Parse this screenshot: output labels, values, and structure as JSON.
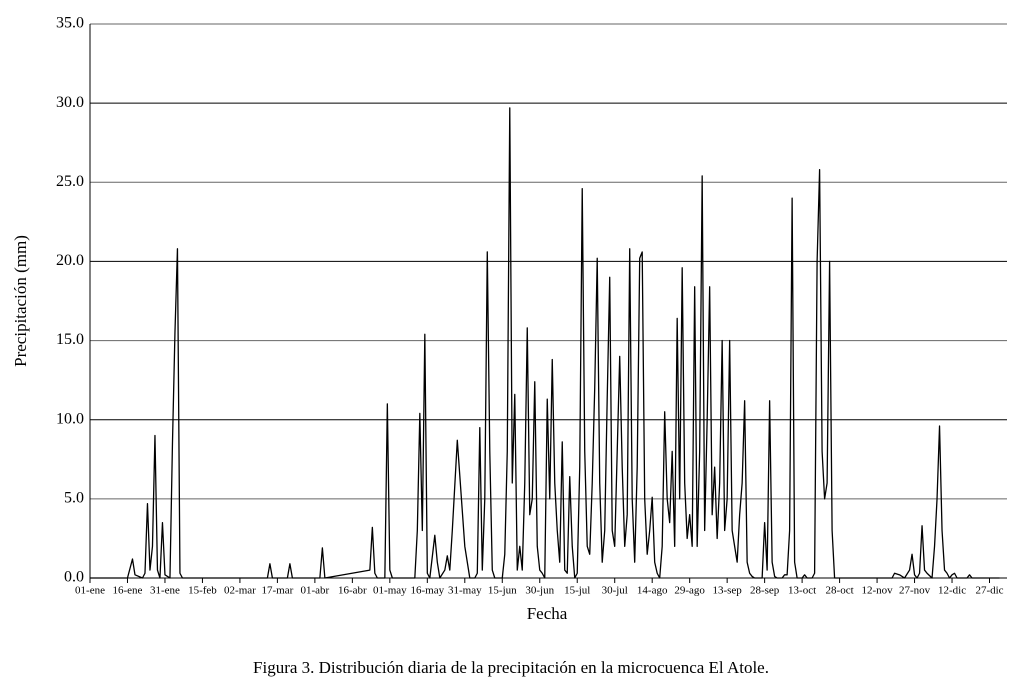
{
  "chart_data": {
    "type": "line",
    "ylabel": "Precipitación (mm)",
    "xlabel": "Fecha",
    "caption": "Figura 3. Distribución diaria de la precipitación en la microcuenca El Atole.",
    "xlim": [
      1,
      368
    ],
    "ylim": [
      0,
      35
    ],
    "yticks": [
      {
        "value": 0,
        "label": "0.0"
      },
      {
        "value": 5,
        "label": "5.0"
      },
      {
        "value": 10,
        "label": "10.0"
      },
      {
        "value": 15,
        "label": "15.0"
      },
      {
        "value": 20,
        "label": "20.0"
      },
      {
        "value": 25,
        "label": "25.0"
      },
      {
        "value": 30,
        "label": "30.0"
      },
      {
        "value": 35,
        "label": "35.0"
      }
    ],
    "xticks": [
      {
        "value": 1,
        "label": "01-ene"
      },
      {
        "value": 16,
        "label": "16-ene"
      },
      {
        "value": 31,
        "label": "31-ene"
      },
      {
        "value": 46,
        "label": "15-feb"
      },
      {
        "value": 61,
        "label": "02-mar"
      },
      {
        "value": 76,
        "label": "17-mar"
      },
      {
        "value": 91,
        "label": "01-abr"
      },
      {
        "value": 106,
        "label": "16-abr"
      },
      {
        "value": 121,
        "label": "01-may"
      },
      {
        "value": 136,
        "label": "16-may"
      },
      {
        "value": 151,
        "label": "31-may"
      },
      {
        "value": 166,
        "label": "15-jun"
      },
      {
        "value": 181,
        "label": "30-jun"
      },
      {
        "value": 196,
        "label": "15-jul"
      },
      {
        "value": 211,
        "label": "30-jul"
      },
      {
        "value": 226,
        "label": "14-ago"
      },
      {
        "value": 241,
        "label": "29-ago"
      },
      {
        "value": 256,
        "label": "13-sep"
      },
      {
        "value": 271,
        "label": "28-sep"
      },
      {
        "value": 286,
        "label": "13-oct"
      },
      {
        "value": 301,
        "label": "28-oct"
      },
      {
        "value": 316,
        "label": "12-nov"
      },
      {
        "value": 331,
        "label": "27-nov"
      },
      {
        "value": 346,
        "label": "12-dic"
      },
      {
        "value": 361,
        "label": "27-dic"
      }
    ],
    "grid": true,
    "color": "#000000",
    "x": [
      1,
      16,
      18,
      19,
      22,
      23,
      24,
      25,
      26,
      27,
      28,
      29,
      30,
      31,
      33,
      34,
      35,
      36,
      37,
      38,
      72,
      73,
      74,
      80,
      81,
      82,
      93,
      94,
      95,
      113,
      114,
      115,
      116,
      119,
      120,
      121,
      122,
      131,
      132,
      133,
      134,
      135,
      136,
      137,
      139,
      140,
      141,
      143,
      144,
      145,
      146,
      148,
      151,
      153,
      155,
      156,
      157,
      158,
      159,
      160,
      161,
      162,
      163,
      166,
      167,
      168,
      169,
      170,
      171,
      172,
      173,
      174,
      175,
      176,
      177,
      178,
      179,
      180,
      181,
      182,
      183,
      184,
      185,
      186,
      187,
      188,
      189,
      190,
      191,
      192,
      193,
      194,
      195,
      196,
      197,
      198,
      199,
      200,
      201,
      202,
      203,
      204,
      205,
      206,
      207,
      208,
      209,
      210,
      211,
      212,
      213,
      214,
      215,
      216,
      217,
      218,
      219,
      220,
      221,
      222,
      223,
      224,
      225,
      226,
      227,
      228,
      229,
      230,
      231,
      232,
      233,
      234,
      235,
      236,
      237,
      238,
      239,
      240,
      241,
      242,
      243,
      244,
      245,
      246,
      247,
      248,
      249,
      250,
      251,
      252,
      253,
      254,
      255,
      256,
      257,
      258,
      259,
      260,
      261,
      262,
      263,
      264,
      265,
      266,
      267,
      270,
      271,
      272,
      273,
      274,
      275,
      276,
      278,
      279,
      280,
      281,
      282,
      283,
      284,
      286,
      287,
      288,
      290,
      291,
      292,
      293,
      294,
      295,
      296,
      297,
      298,
      299,
      322,
      323,
      325,
      327,
      329,
      330,
      331,
      332,
      333,
      334,
      335,
      336,
      338,
      339,
      340,
      341,
      342,
      343,
      344,
      345,
      346,
      347,
      348,
      352,
      353,
      354,
      360,
      365
    ],
    "values": [
      0,
      0,
      1.2,
      0.2,
      0,
      0.3,
      4.7,
      0.5,
      2,
      9.0,
      0.5,
      0,
      3.5,
      0.2,
      0,
      8.5,
      15.5,
      20.8,
      0.3,
      0,
      0,
      0.9,
      0,
      0,
      0.9,
      0,
      0,
      1.9,
      0,
      0.5,
      3.2,
      0.3,
      0,
      0,
      11.0,
      0.5,
      0,
      0,
      3,
      10.4,
      3,
      15.4,
      0.3,
      0,
      2.7,
      1,
      0,
      0.5,
      1.4,
      0.5,
      3,
      8.7,
      2,
      0,
      0,
      0.3,
      9.5,
      0.5,
      5,
      20.6,
      8,
      0.5,
      0,
      0,
      1.5,
      8,
      29.7,
      6,
      11.6,
      0.5,
      2,
      0.5,
      6,
      15.8,
      4,
      5,
      12.4,
      2,
      0.5,
      0.3,
      0,
      11.3,
      5,
      13.8,
      6,
      3,
      1,
      8.6,
      0.5,
      0.3,
      6.4,
      2,
      0,
      0.3,
      7,
      24.6,
      8,
      2,
      1.5,
      6,
      12,
      20.2,
      6,
      1,
      3,
      11.4,
      19.0,
      3,
      2,
      8,
      14.0,
      7,
      2,
      4,
      20.8,
      5,
      1,
      7,
      20.2,
      20.6,
      5,
      1.5,
      3,
      5.1,
      1,
      0.3,
      0,
      2,
      10.5,
      5,
      3.5,
      8,
      2,
      16.4,
      5,
      19.6,
      6,
      2.5,
      4,
      2,
      18.4,
      2,
      8,
      25.4,
      3,
      10,
      18.4,
      4,
      7,
      2.5,
      6,
      15,
      3,
      5,
      15,
      3,
      2,
      1,
      4,
      6,
      11.2,
      1,
      0.3,
      0.1,
      0,
      0,
      3.5,
      0.5,
      11.2,
      1,
      0.1,
      0,
      0,
      0.2,
      0.2,
      3,
      24,
      1,
      0,
      0,
      0.2,
      0,
      0,
      0.3,
      20,
      25.8,
      8,
      5,
      6,
      20,
      3,
      0,
      0,
      0.3,
      0.2,
      0,
      0.5,
      1.5,
      0.2,
      0,
      0.3,
      3.3,
      0.5,
      0.3,
      0,
      2,
      5,
      9.6,
      3,
      0.5,
      0.3,
      0,
      0.2,
      0.3,
      0,
      0,
      0.2,
      0,
      0,
      0
    ]
  }
}
